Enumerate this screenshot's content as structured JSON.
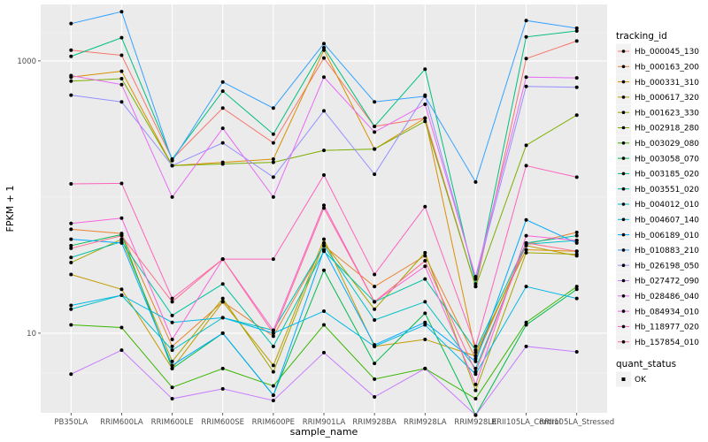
{
  "chart_data": {
    "type": "line",
    "xlabel": "sample_name",
    "ylabel": "FPKM + 1",
    "y_scale": "log10",
    "ylim": [
      2.6,
      2600
    ],
    "y_ticks": [
      10,
      1000
    ],
    "y_tick_labels": [
      "10",
      "1000"
    ],
    "grid": true,
    "legend_placement": "right",
    "categories": [
      "PB350LA",
      "RRIM600LA",
      "RRIM600LE",
      "RRIM600SE",
      "RRIM600PE",
      "RRIM901LA",
      "RRIM928BA",
      "RRIM928LA",
      "RRIM928LE",
      "RRII105LA_Control",
      "RRII105LA_Stressed"
    ],
    "category_tick_labels": [
      "PB350LA",
      "RRIM600LA",
      "RRIM600LE",
      "RRIM600SE",
      "RRIM600PE",
      "RRIM901LA",
      "RRIM928BA",
      "RRIM928LA",
      "RRIM928LE",
      "RRII105LA_Control",
      "RRII105LA_Stressed"
    ],
    "legend": {
      "title": "tracking_id",
      "shape_title": "quant_status",
      "shape_entries": [
        "OK"
      ]
    },
    "series": [
      {
        "name": "Hb_000045_130",
        "color": "#F8766D",
        "values": [
          1200,
          1100,
          190,
          450,
          250,
          1050,
          330,
          380,
          22,
          1040,
          1400
        ]
      },
      {
        "name": "Hb_000163_200",
        "color": "#EA8331",
        "values": [
          58,
          54,
          8,
          17,
          9.5,
          44,
          22,
          37,
          6.5,
          45,
          55
        ]
      },
      {
        "name": "Hb_000331_310",
        "color": "#D89000",
        "values": [
          760,
          840,
          170,
          180,
          190,
          1200,
          225,
          380,
          7.2,
          41,
          40
        ]
      },
      {
        "name": "Hb_000617_320",
        "color": "#C09B00",
        "values": [
          27,
          21,
          5.5,
          17,
          5.8,
          49,
          8,
          9,
          6.8,
          44,
          37
        ]
      },
      {
        "name": "Hb_001623_330",
        "color": "#A3A500",
        "values": [
          33,
          49,
          6.2,
          18,
          5.2,
          46,
          15,
          39,
          3.8,
          39,
          38
        ]
      },
      {
        "name": "Hb_002918_280",
        "color": "#7CAE00",
        "values": [
          710,
          740,
          170,
          175,
          180,
          220,
          225,
          360,
          22,
          240,
          400
        ]
      },
      {
        "name": "Hb_003029_080",
        "color": "#39B600",
        "values": [
          11.5,
          11,
          4,
          5.5,
          4.1,
          11.5,
          4.6,
          5.5,
          3.3,
          12,
          22
        ]
      },
      {
        "name": "Hb_003058_070",
        "color": "#00BB4E",
        "values": [
          44,
          53,
          5.5,
          10,
          3.5,
          29,
          6,
          14,
          2.5,
          11.5,
          21
        ]
      },
      {
        "name": "Hb_003185_020",
        "color": "#00BF7D",
        "values": [
          1080,
          1480,
          190,
          600,
          290,
          1250,
          330,
          870,
          23,
          1500,
          1660
        ]
      },
      {
        "name": "Hb_003551_020",
        "color": "#00C1A3",
        "values": [
          36,
          47,
          13.5,
          23,
          8,
          40,
          17,
          25,
          7.5,
          46,
          52
        ]
      },
      {
        "name": "Hb_004012_010",
        "color": "#00BFC4",
        "values": [
          15,
          19,
          7.5,
          13,
          10.5,
          44,
          12.5,
          17,
          5.5,
          45,
          48
        ]
      },
      {
        "name": "Hb_004607_140",
        "color": "#00B8E7",
        "values": [
          16,
          19,
          12,
          13,
          10,
          14.5,
          8,
          11.5,
          5,
          22,
          18
        ]
      },
      {
        "name": "Hb_006189_010",
        "color": "#00A9FF",
        "values": [
          49,
          46,
          5.8,
          10,
          3.5,
          41,
          8.2,
          12,
          6.2,
          68,
          46
        ]
      },
      {
        "name": "Hb_010883_210",
        "color": "#35A2FF",
        "values": [
          1880,
          2300,
          185,
          700,
          450,
          1340,
          500,
          550,
          129,
          1980,
          1740
        ]
      },
      {
        "name": "Hb_026198_050",
        "color": "#9590FF",
        "values": [
          560,
          500,
          170,
          250,
          140,
          430,
          147,
          560,
          25,
          650,
          640
        ]
      },
      {
        "name": "Hb_027472_090",
        "color": "#C77CFF",
        "values": [
          5,
          7.5,
          3.3,
          3.9,
          3.2,
          7.2,
          3.4,
          5.5,
          2.5,
          8,
          7.3
        ]
      },
      {
        "name": "Hb_028486_040",
        "color": "#E76BF3",
        "values": [
          780,
          670,
          100,
          320,
          100,
          760,
          300,
          480,
          26,
          760,
          750
        ]
      },
      {
        "name": "Hb_084934_010",
        "color": "#FA62DB",
        "values": [
          64,
          70,
          9,
          35,
          10.5,
          87,
          17,
          31,
          4.2,
          52,
          48
        ]
      },
      {
        "name": "Hb_118977_020",
        "color": "#FF62BC",
        "values": [
          125,
          126,
          18,
          35,
          35,
          145,
          27,
          85,
          8,
          170,
          140
        ]
      },
      {
        "name": "Hb_157854_010",
        "color": "#FF6C91",
        "values": [
          42,
          52,
          17,
          35,
          10,
          83,
          17,
          34,
          5.2,
          46,
          40
        ]
      }
    ]
  }
}
